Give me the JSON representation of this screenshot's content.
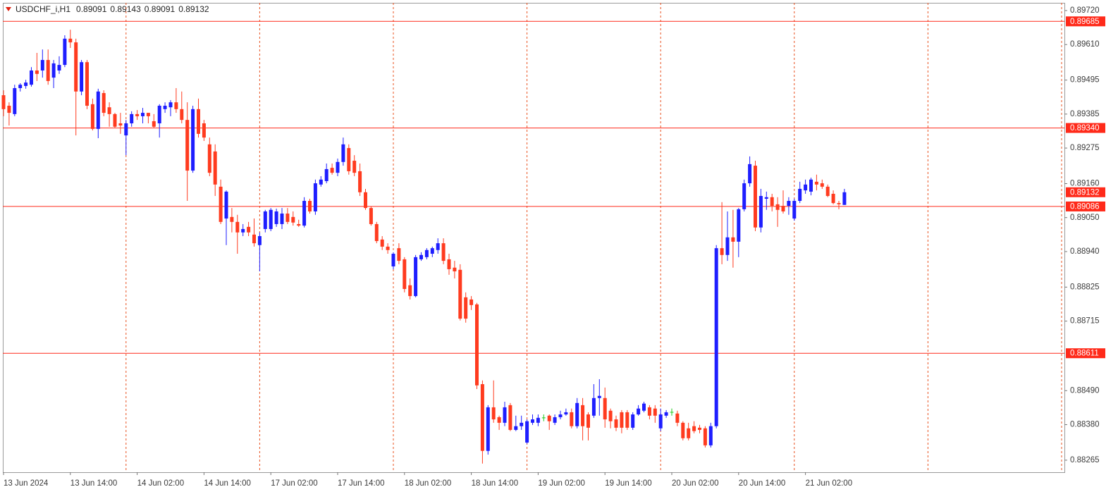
{
  "chart_data": {
    "type": "candlestick",
    "title": "USDCHF_i,H1",
    "categories": [
      "13 Jun 2024",
      null,
      null,
      null,
      null,
      null,
      null,
      null,
      null,
      null,
      null,
      null,
      "13 Jun 14:00",
      null,
      null,
      null,
      null,
      null,
      null,
      null,
      null,
      null,
      null,
      null,
      "14 Jun 02:00",
      null,
      null,
      null,
      null,
      null,
      null,
      null,
      null,
      null,
      null,
      null,
      "14 Jun 14:00",
      null,
      null,
      null,
      null,
      null,
      null,
      null,
      null,
      null,
      null,
      null,
      "17 Jun 02:00",
      null,
      null,
      null,
      null,
      null,
      null,
      null,
      null,
      null,
      null,
      null,
      "17 Jun 14:00",
      null,
      null,
      null,
      null,
      null,
      null,
      null,
      null,
      null,
      null,
      null,
      "18 Jun 02:00",
      null,
      null,
      null,
      null,
      null,
      null,
      null,
      null,
      null,
      null,
      null,
      "18 Jun 14:00",
      null,
      null,
      null,
      null,
      null,
      null,
      null,
      null,
      null,
      null,
      null,
      "19 Jun 02:00",
      null,
      null,
      null,
      null,
      null,
      null,
      null,
      null,
      null,
      null,
      null,
      "19 Jun 14:00",
      null,
      null,
      null,
      null,
      null,
      null,
      null,
      null,
      null,
      null,
      null,
      "20 Jun 02:00",
      null,
      null,
      null,
      null,
      null,
      null,
      null,
      null,
      null,
      null,
      null,
      "20 Jun 14:00",
      null,
      null,
      null,
      null,
      null,
      null,
      null,
      null,
      null,
      null,
      null,
      "21 Jun 02:00",
      null,
      null,
      null,
      null,
      null,
      null,
      null
    ],
    "open": [
      0.89446,
      0.89412,
      0.89385,
      0.89469,
      0.89476,
      0.8948,
      0.89526,
      0.89526,
      0.8956,
      0.89503,
      0.89526,
      0.89544,
      0.89629,
      0.89617,
      0.89458,
      0.89553,
      0.89417,
      0.89337,
      0.89453,
      0.89407,
      0.89385,
      0.89355,
      0.89316,
      0.89355,
      0.89385,
      0.89378,
      0.89389,
      0.89362,
      0.89355,
      0.89401,
      0.89407,
      0.89423,
      0.89401,
      0.89366,
      0.89202,
      0.89401,
      0.89355,
      0.89287,
      0.89264,
      0.8915,
      0.89047,
      0.89052,
      0.89036,
      0.89002,
      0.8902,
      0.88995,
      0.88961,
      0.89013,
      0.89013,
      0.89029,
      0.89029,
      0.89063,
      0.89052,
      0.89029,
      0.89024,
      0.89104,
      0.8907,
      0.89157,
      0.89168,
      0.89211,
      0.89195,
      0.8923,
      0.89275,
      0.89234,
      0.892,
      0.89132,
      0.89081,
      0.89029,
      0.88979,
      0.88956,
      0.88892,
      0.88951,
      0.88915,
      0.88831,
      0.88796,
      0.88915,
      0.88922,
      0.88933,
      0.88945,
      0.88967,
      0.88915,
      0.88888,
      0.88881,
      0.88792,
      0.88785,
      0.88769,
      0.88511,
      0.88295,
      0.88436,
      0.88404,
      0.88386,
      0.88443,
      0.88363,
      0.88375,
      0.88322,
      0.88386,
      0.88386,
      0.88402,
      0.88409,
      0.88386,
      0.88404,
      0.88413,
      0.8842,
      0.88375,
      0.88443,
      0.88413,
      0.88409,
      0.88466,
      0.88466,
      0.88425,
      0.88397,
      0.8842,
      0.8842,
      0.8837,
      0.88413,
      0.88425,
      0.88436,
      0.88432,
      0.88368,
      0.88409,
      0.8842,
      0.88416,
      0.88386,
      0.88368,
      0.88375,
      0.8837,
      0.88368,
      0.88313,
      0.88375,
      0.88951,
      0.88929,
      0.88986,
      0.88972,
      0.89077,
      0.89161,
      0.89218,
      0.89018,
      0.89111,
      0.89116,
      0.89093,
      0.89088,
      0.89088,
      0.89047,
      0.89104,
      0.89138,
      0.89134,
      0.89166,
      0.89161,
      0.8915,
      0.89127,
      0.89097,
      0.89091
    ],
    "high": [
      0.89462,
      0.89423,
      0.8948,
      0.89485,
      0.89496,
      0.89537,
      0.89583,
      0.89594,
      0.89594,
      0.8956,
      0.89572,
      0.8964,
      0.89658,
      0.89629,
      0.8956,
      0.8956,
      0.89435,
      0.89467,
      0.89462,
      0.89423,
      0.89389,
      0.89389,
      0.89366,
      0.89394,
      0.89398,
      0.89405,
      0.89389,
      0.89385,
      0.89417,
      0.89423,
      0.8943,
      0.89469,
      0.89458,
      0.89423,
      0.89412,
      0.89435,
      0.89366,
      0.89309,
      0.89287,
      0.89173,
      0.89138,
      0.89081,
      0.89059,
      0.89029,
      0.89036,
      0.89047,
      0.89002,
      0.89075,
      0.89081,
      0.89079,
      0.89081,
      0.89081,
      0.8907,
      0.89043,
      0.89116,
      0.89111,
      0.89173,
      0.89184,
      0.89225,
      0.89225,
      0.89241,
      0.89309,
      0.89287,
      0.89252,
      0.89225,
      0.89143,
      0.89086,
      0.89036,
      0.8899,
      0.88967,
      0.88938,
      0.88967,
      0.88922,
      0.88853,
      0.88929,
      0.88938,
      0.88951,
      0.88956,
      0.88983,
      0.88983,
      0.88933,
      0.8891,
      0.88899,
      0.88808,
      0.88796,
      0.88774,
      0.88523,
      0.88443,
      0.88523,
      0.88409,
      0.88454,
      0.8845,
      0.88409,
      0.88409,
      0.88397,
      0.88413,
      0.88413,
      0.88413,
      0.88413,
      0.88413,
      0.88425,
      0.88432,
      0.88432,
      0.88466,
      0.88466,
      0.8842,
      0.88511,
      0.88527,
      0.885,
      0.88432,
      0.88409,
      0.88427,
      0.88427,
      0.8842,
      0.88443,
      0.88454,
      0.88443,
      0.88443,
      0.88432,
      0.88427,
      0.88432,
      0.88425,
      0.88391,
      0.88386,
      0.88391,
      0.88379,
      0.88375,
      0.88386,
      0.88961,
      0.891,
      0.8907,
      0.89075,
      0.89081,
      0.89173,
      0.89248,
      0.89234,
      0.89143,
      0.89134,
      0.89127,
      0.89116,
      0.89138,
      0.89116,
      0.89111,
      0.89166,
      0.89173,
      0.89179,
      0.89189,
      0.89173,
      0.89157,
      0.89138,
      0.89104,
      0.89143
    ],
    "low": [
      0.89378,
      0.89348,
      0.89378,
      0.89458,
      0.89467,
      0.89474,
      0.89492,
      0.89503,
      0.8948,
      0.89469,
      0.89515,
      0.89537,
      0.89599,
      0.89316,
      0.89446,
      0.89401,
      0.89332,
      0.89307,
      0.89378,
      0.89344,
      0.89339,
      0.89321,
      0.89252,
      0.89344,
      0.89366,
      0.89355,
      0.89355,
      0.89339,
      0.89309,
      0.89389,
      0.89378,
      0.89389,
      0.89355,
      0.89104,
      0.89195,
      0.89309,
      0.89298,
      0.89184,
      0.8912,
      0.89029,
      0.88961,
      0.89002,
      0.88933,
      0.8899,
      0.8899,
      0.88956,
      0.88876,
      0.89002,
      0.89006,
      0.8902,
      0.89013,
      0.89029,
      0.89024,
      0.8902,
      0.89018,
      0.89063,
      0.89059,
      0.8915,
      0.89161,
      0.89189,
      0.89184,
      0.89218,
      0.89189,
      0.89184,
      0.8912,
      0.89075,
      0.89024,
      0.88967,
      0.88945,
      0.88933,
      0.88883,
      0.88899,
      0.88808,
      0.88785,
      0.88792,
      0.8891,
      0.88915,
      0.88922,
      0.88933,
      0.88899,
      0.88865,
      0.88853,
      0.88717,
      0.8871,
      0.88751,
      0.88495,
      0.88254,
      0.88283,
      0.88386,
      0.88363,
      0.88375,
      0.88359,
      0.88359,
      0.88363,
      0.88318,
      0.88379,
      0.88375,
      0.88391,
      0.88363,
      0.88379,
      0.88397,
      0.88409,
      0.88368,
      0.88368,
      0.88329,
      0.88329,
      0.88402,
      0.88409,
      0.8837,
      0.88368,
      0.88359,
      0.88352,
      0.88363,
      0.88363,
      0.88409,
      0.8842,
      0.88397,
      0.88386,
      0.88359,
      0.88402,
      0.88409,
      0.88375,
      0.88329,
      0.88329,
      0.88352,
      0.88352,
      0.88306,
      0.88306,
      0.88368,
      0.88899,
      0.8891,
      0.88888,
      0.88922,
      0.8907,
      0.8915,
      0.89006,
      0.89002,
      0.89075,
      0.8907,
      0.8902,
      0.89063,
      0.89059,
      0.8904,
      0.89097,
      0.89127,
      0.89122,
      0.89138,
      0.89143,
      0.89116,
      0.89093,
      0.89077,
      0.89091
    ],
    "close": [
      0.89401,
      0.89389,
      0.89469,
      0.8948,
      0.89487,
      0.89526,
      0.89515,
      0.8956,
      0.89492,
      0.89549,
      0.89544,
      0.89629,
      0.89617,
      0.89458,
      0.89553,
      0.89412,
      0.89337,
      0.89458,
      0.89389,
      0.89385,
      0.89344,
      0.89348,
      0.89355,
      0.89385,
      0.89378,
      0.89389,
      0.89378,
      0.89344,
      0.89412,
      0.89412,
      0.89423,
      0.89401,
      0.89366,
      0.89202,
      0.89401,
      0.89321,
      0.89309,
      0.89195,
      0.89157,
      0.89036,
      0.89134,
      0.89036,
      0.89002,
      0.89013,
      0.89002,
      0.88967,
      0.8899,
      0.8907,
      0.89075,
      0.8907,
      0.89063,
      0.89036,
      0.89034,
      0.89024,
      0.89104,
      0.8907,
      0.89161,
      0.89173,
      0.89207,
      0.89195,
      0.8923,
      0.89287,
      0.892,
      0.89195,
      0.89132,
      0.89081,
      0.89029,
      0.88974,
      0.88956,
      0.88945,
      0.88933,
      0.8891,
      0.88819,
      0.88796,
      0.88922,
      0.88929,
      0.88945,
      0.88951,
      0.88967,
      0.8891,
      0.88883,
      0.88876,
      0.88723,
      0.88723,
      0.88767,
      0.88507,
      0.88295,
      0.88436,
      0.88397,
      0.88386,
      0.88436,
      0.88363,
      0.88375,
      0.88386,
      0.88391,
      0.88397,
      0.88402,
      0.88402,
      0.88391,
      0.88404,
      0.88413,
      0.8842,
      0.88375,
      0.8845,
      0.88375,
      0.8837,
      0.88466,
      0.88473,
      0.88397,
      0.88391,
      0.8837,
      0.8837,
      0.8837,
      0.88413,
      0.88432,
      0.88448,
      0.88409,
      0.88409,
      0.88413,
      0.8842,
      0.8842,
      0.88386,
      0.88336,
      0.88336,
      0.88359,
      0.88363,
      0.88313,
      0.88375,
      0.88951,
      0.88929,
      0.88986,
      0.88972,
      0.89077,
      0.89161,
      0.89223,
      0.89018,
      0.8912,
      0.89116,
      0.89088,
      0.89075,
      0.8907,
      0.89104,
      0.89104,
      0.89143,
      0.89157,
      0.89173,
      0.89157,
      0.8915,
      0.8912,
      0.89097,
      0.89093,
      0.89132
    ],
    "colors": {
      "up": "#1e1eff",
      "down": "#ff3b1f",
      "unchanged": "#1ec81e"
    },
    "ylim": [
      0.88226,
      0.89745
    ],
    "yticks": [
      {
        "value": 0.8972,
        "label": "0.89720"
      },
      {
        "value": 0.8961,
        "label": "0.89610"
      },
      0.89495,
      0.89385,
      0.89275,
      {
        "value": 0.8916,
        "label": "0.89160"
      },
      {
        "value": 0.8905,
        "label": "0.89050"
      },
      {
        "value": 0.8894,
        "label": "0.88940"
      },
      0.88825,
      0.88715,
      {
        "value": 0.8849,
        "label": "0.88490"
      },
      {
        "value": 0.8838,
        "label": "0.88380"
      },
      0.88265
    ],
    "hlines": [
      0.89685,
      {
        "value": 0.8934,
        "label": "0.89340"
      },
      0.89086,
      0.88611
    ],
    "hline_color": "#ff2a1a",
    "grid": true
  }
}
